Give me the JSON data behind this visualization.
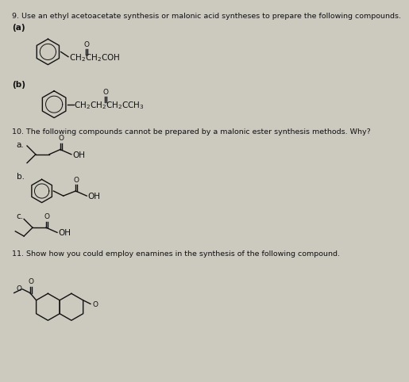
{
  "bg_color": "#ccc9be",
  "text_color": "#111111",
  "title": "9. Use an ethyl acetoacetate synthesis or malonic acid syntheses to prepare the following compounds.",
  "q9a_label": "(a)",
  "q9b_label": "(b)",
  "q10_text": "10. The following compounds cannot be prepared by a malonic ester synthesis methods. Why?",
  "q10a_label": "a.",
  "q10b_label": "b.",
  "q10c_label": "c.",
  "q11_text": "11. Show how you could employ enamines in the synthesis of the following compound.",
  "font_size_title": 6.8,
  "font_size_label": 7.5,
  "font_size_formula": 7.5,
  "font_size_body": 6.8
}
